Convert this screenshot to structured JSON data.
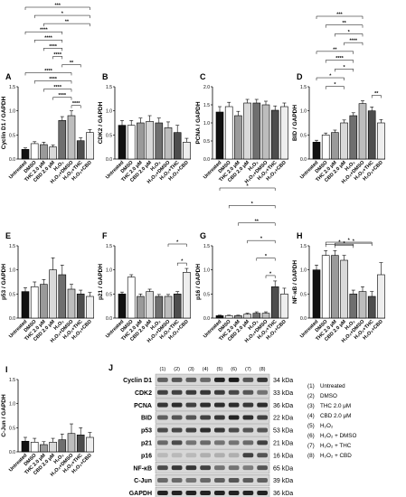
{
  "treatments": [
    "Untreated",
    "DMSO",
    "THC 2.0 μM",
    "CBD 2.0 μM",
    "H₂O₂",
    "H₂O₂+DMSO",
    "H₂O₂+THC",
    "H₂O₂+CBD"
  ],
  "bar_colors": [
    "#111111",
    "#ffffff",
    "#9a9a9a",
    "#d9d9d9",
    "#6f6f6f",
    "#bdbdbd",
    "#4d4d4d",
    "#eeeeee"
  ],
  "chart_data": [
    {
      "type": "bar",
      "letter": "A",
      "ylabel": "Cyclin D1 / GAPDH",
      "ylim": [
        0,
        1.5
      ],
      "values": [
        0.2,
        0.32,
        0.3,
        0.25,
        0.8,
        0.9,
        0.38,
        0.55
      ],
      "errors": [
        0.03,
        0.04,
        0.05,
        0.04,
        0.08,
        0.1,
        0.06,
        0.06
      ],
      "significance": [
        {
          "a": 0,
          "b": 7,
          "label": "***"
        },
        {
          "a": 1,
          "b": 7,
          "label": "*"
        },
        {
          "a": 2,
          "b": 7,
          "label": "**"
        },
        {
          "a": 0,
          "b": 4,
          "label": "****"
        },
        {
          "a": 1,
          "b": 4,
          "label": "****"
        },
        {
          "a": 2,
          "b": 4,
          "label": "****"
        },
        {
          "a": 3,
          "b": 4,
          "label": "****"
        },
        {
          "a": 4,
          "b": 6,
          "label": "**"
        },
        {
          "a": 0,
          "b": 5,
          "label": "****"
        },
        {
          "a": 1,
          "b": 5,
          "label": "****"
        },
        {
          "a": 2,
          "b": 5,
          "label": "****"
        },
        {
          "a": 3,
          "b": 5,
          "label": "****"
        },
        {
          "a": 5,
          "b": 6,
          "label": "****"
        }
      ]
    },
    {
      "type": "bar",
      "letter": "B",
      "ylabel": "CDK2 / GAPDH",
      "ylim": [
        0,
        1.5
      ],
      "values": [
        0.7,
        0.7,
        0.75,
        0.78,
        0.75,
        0.65,
        0.55,
        0.35
      ],
      "errors": [
        0.1,
        0.1,
        0.1,
        0.12,
        0.1,
        0.12,
        0.15,
        0.08
      ],
      "significance": []
    },
    {
      "type": "bar",
      "letter": "C",
      "ylabel": "PCNA / GAPDH",
      "ylim": [
        0,
        2.0
      ],
      "values": [
        1.3,
        1.45,
        1.2,
        1.55,
        1.55,
        1.5,
        1.35,
        1.45
      ],
      "errors": [
        0.15,
        0.12,
        0.12,
        0.1,
        0.1,
        0.1,
        0.12,
        0.1
      ],
      "significance": []
    },
    {
      "type": "bar",
      "letter": "D",
      "ylabel": "BID / GAPDH",
      "ylim": [
        0,
        1.5
      ],
      "values": [
        0.35,
        0.5,
        0.55,
        0.75,
        0.9,
        1.15,
        1.0,
        0.75
      ],
      "errors": [
        0.04,
        0.04,
        0.05,
        0.06,
        0.06,
        0.06,
        0.08,
        0.07
      ],
      "significance": [
        {
          "a": 0,
          "b": 5,
          "label": "***"
        },
        {
          "a": 1,
          "b": 5,
          "label": "**"
        },
        {
          "a": 2,
          "b": 5,
          "label": "*"
        },
        {
          "a": 3,
          "b": 5,
          "label": "****"
        },
        {
          "a": 0,
          "b": 4,
          "label": "**"
        },
        {
          "a": 1,
          "b": 4,
          "label": "****"
        },
        {
          "a": 2,
          "b": 4,
          "label": "*"
        },
        {
          "a": 0,
          "b": 3,
          "label": "*"
        },
        {
          "a": 1,
          "b": 3,
          "label": "*"
        },
        {
          "a": 6,
          "b": 7,
          "label": "**"
        }
      ]
    },
    {
      "type": "bar",
      "letter": "E",
      "ylabel": "p53 / GAPDH",
      "ylim": [
        0,
        1.5
      ],
      "values": [
        0.55,
        0.65,
        0.7,
        1.0,
        0.9,
        0.6,
        0.5,
        0.45
      ],
      "errors": [
        0.08,
        0.1,
        0.1,
        0.25,
        0.2,
        0.1,
        0.08,
        0.08
      ],
      "significance": []
    },
    {
      "type": "bar",
      "letter": "F",
      "ylabel": "p21 / GAPDH",
      "ylim": [
        0,
        1.5
      ],
      "values": [
        0.5,
        0.85,
        0.45,
        0.55,
        0.45,
        0.45,
        0.5,
        0.95
      ],
      "errors": [
        0.04,
        0.05,
        0.05,
        0.05,
        0.04,
        0.04,
        0.05,
        0.08
      ],
      "significance": [
        {
          "a": 5,
          "b": 7,
          "label": "*"
        },
        {
          "a": 6,
          "b": 7,
          "label": "*"
        }
      ]
    },
    {
      "type": "bar",
      "letter": "G",
      "ylabel": "p16 / GAPDH",
      "ylim": [
        0,
        1.5
      ],
      "values": [
        0.05,
        0.05,
        0.05,
        0.08,
        0.1,
        0.1,
        0.65,
        0.5
      ],
      "errors": [
        0.01,
        0.01,
        0.01,
        0.02,
        0.03,
        0.03,
        0.12,
        0.12
      ],
      "significance": [
        {
          "a": 0,
          "b": 6,
          "label": "*"
        },
        {
          "a": 1,
          "b": 6,
          "label": "*"
        },
        {
          "a": 2,
          "b": 6,
          "label": "**"
        },
        {
          "a": 3,
          "b": 6,
          "label": "*"
        },
        {
          "a": 4,
          "b": 6,
          "label": "*"
        },
        {
          "a": 5,
          "b": 6,
          "label": "*"
        }
      ]
    },
    {
      "type": "bar",
      "letter": "H",
      "ylabel": "NF-κB / GAPDH",
      "ylim": [
        0,
        1.5
      ],
      "values": [
        1.0,
        1.3,
        1.3,
        1.2,
        0.5,
        0.55,
        0.45,
        0.9
      ],
      "errors": [
        0.1,
        0.1,
        0.1,
        0.1,
        0.08,
        0.1,
        0.1,
        0.25
      ],
      "significance": [
        {
          "a": 1,
          "b": 6,
          "label": "*"
        },
        {
          "a": 2,
          "b": 6,
          "label": "*"
        },
        {
          "a": 1,
          "b": 4,
          "label": "*"
        },
        {
          "a": 2,
          "b": 4,
          "label": "*"
        }
      ]
    },
    {
      "type": "bar",
      "letter": "I",
      "ylabel": "C-Jun / GAPDH",
      "ylim": [
        0,
        1.5
      ],
      "values": [
        0.22,
        0.2,
        0.15,
        0.2,
        0.25,
        0.38,
        0.35,
        0.3
      ],
      "errors": [
        0.08,
        0.08,
        0.06,
        0.08,
        0.12,
        0.2,
        0.15,
        0.1
      ],
      "significance": []
    }
  ],
  "blot": {
    "letter": "J",
    "lane_numbers": [
      "(1)",
      "(2)",
      "(3)",
      "(4)",
      "(5)",
      "(6)",
      "(7)",
      "(8)"
    ],
    "rows": [
      {
        "protein": "Cyclin D1",
        "kda": "34 kDa",
        "intensity": [
          0.6,
          0.65,
          0.6,
          0.55,
          0.9,
          0.95,
          0.65,
          0.8
        ]
      },
      {
        "protein": "CDK2",
        "kda": "33 kDa",
        "intensity": [
          0.75,
          0.75,
          0.78,
          0.8,
          0.78,
          0.72,
          0.65,
          0.5
        ]
      },
      {
        "protein": "PCNA",
        "kda": "36 kDa",
        "intensity": [
          0.8,
          0.85,
          0.75,
          0.85,
          0.85,
          0.85,
          0.8,
          0.85
        ]
      },
      {
        "protein": "BID",
        "kda": "22 kDa",
        "intensity": [
          0.6,
          0.65,
          0.65,
          0.75,
          0.8,
          0.9,
          0.85,
          0.75
        ]
      },
      {
        "protein": "p53",
        "kda": "53 kDa",
        "intensity": [
          0.7,
          0.72,
          0.75,
          0.85,
          0.8,
          0.7,
          0.65,
          0.65
        ]
      },
      {
        "protein": "p21",
        "kda": "21 kDa",
        "intensity": [
          0.55,
          0.7,
          0.5,
          0.55,
          0.5,
          0.5,
          0.55,
          0.75
        ]
      },
      {
        "protein": "p16",
        "kda": "16 kDa",
        "intensity": [
          0.15,
          0.15,
          0.15,
          0.2,
          0.2,
          0.2,
          0.75,
          0.65
        ]
      },
      {
        "protein": "NF-κB",
        "kda": "65 kDa",
        "intensity": [
          0.7,
          0.8,
          0.8,
          0.75,
          0.5,
          0.5,
          0.45,
          0.65
        ]
      },
      {
        "protein": "C-Jun",
        "kda": "39 kDa",
        "intensity": [
          0.55,
          0.55,
          0.5,
          0.55,
          0.6,
          0.65,
          0.62,
          0.6
        ]
      },
      {
        "protein": "GAPDH",
        "kda": "36 kDa",
        "intensity": [
          0.9,
          0.9,
          0.9,
          0.9,
          0.9,
          0.9,
          0.9,
          0.9
        ]
      }
    ]
  },
  "legend": [
    {
      "num": "(1)",
      "label": "Untreated"
    },
    {
      "num": "(2)",
      "label": "DMSO"
    },
    {
      "num": "(3)",
      "label": "THC 2.0 μM"
    },
    {
      "num": "(4)",
      "label": "CBD 2.0 μM"
    },
    {
      "num": "(5)",
      "label": "H₂O₂"
    },
    {
      "num": "(6)",
      "label": "H₂O₂ + DMSO"
    },
    {
      "num": "(7)",
      "label": "H₂O₂ + THC"
    },
    {
      "num": "(8)",
      "label": "H₂O₂ + CBD"
    }
  ]
}
